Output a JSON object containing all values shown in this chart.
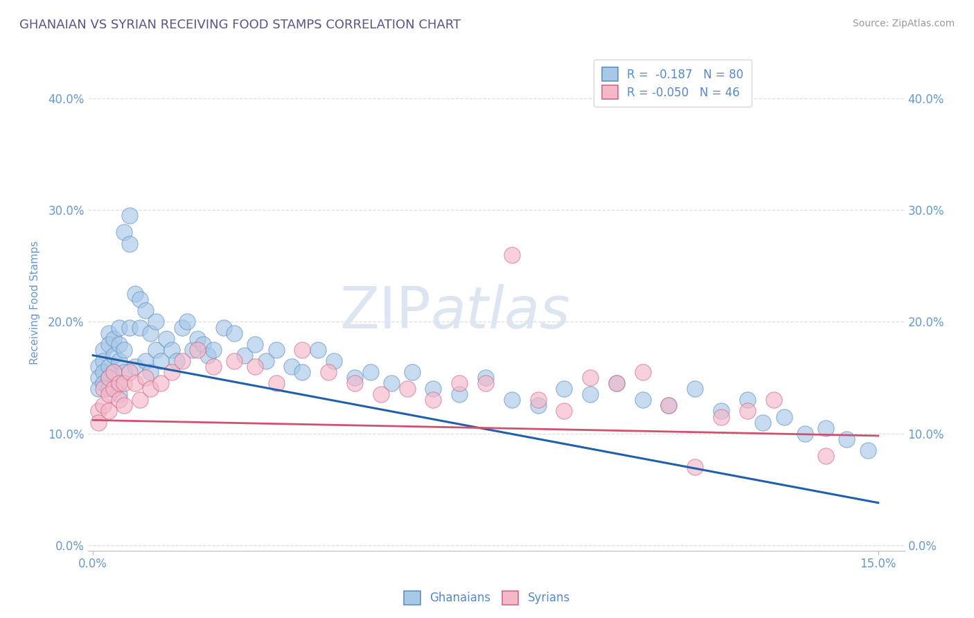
{
  "title": "GHANAIAN VS SYRIAN RECEIVING FOOD STAMPS CORRELATION CHART",
  "source": "Source: ZipAtlas.com",
  "ylabel": "Receiving Food Stamps",
  "xlim": [
    -0.001,
    0.155
  ],
  "ylim": [
    -0.005,
    0.44
  ],
  "xtick_positions": [
    0.0,
    0.15
  ],
  "xtick_labels": [
    "0.0%",
    "15.0%"
  ],
  "yticks": [
    0.0,
    0.1,
    0.2,
    0.3,
    0.4
  ],
  "ytick_labels": [
    "0.0%",
    "10.0%",
    "20.0%",
    "30.0%",
    "40.0%"
  ],
  "ghanaian_R": -0.187,
  "ghanaian_N": 80,
  "syrian_R": -0.05,
  "syrian_N": 46,
  "blue_color": "#a8c8e8",
  "pink_color": "#f4b8c8",
  "blue_edge_color": "#6090c0",
  "pink_edge_color": "#d06888",
  "blue_line_color": "#2060a8",
  "pink_line_color": "#d05070",
  "title_color": "#555588",
  "axis_label_color": "#6699cc",
  "tick_color": "#6699cc",
  "watermark_color": "#dde5f0",
  "legend_text_color": "#5588cc",
  "grid_color": "#dddddd",
  "blue_trend_x0": 0.0,
  "blue_trend_y0": 0.17,
  "blue_trend_x1": 0.15,
  "blue_trend_y1": 0.038,
  "pink_trend_x0": 0.0,
  "pink_trend_y0": 0.112,
  "pink_trend_x1": 0.15,
  "pink_trend_y1": 0.098,
  "ghanaian_x": [
    0.001,
    0.001,
    0.001,
    0.002,
    0.002,
    0.002,
    0.002,
    0.003,
    0.003,
    0.003,
    0.003,
    0.003,
    0.004,
    0.004,
    0.004,
    0.005,
    0.005,
    0.005,
    0.005,
    0.005,
    0.006,
    0.006,
    0.006,
    0.007,
    0.007,
    0.007,
    0.008,
    0.008,
    0.009,
    0.009,
    0.01,
    0.01,
    0.011,
    0.011,
    0.012,
    0.012,
    0.013,
    0.014,
    0.015,
    0.016,
    0.017,
    0.018,
    0.019,
    0.02,
    0.021,
    0.022,
    0.023,
    0.025,
    0.027,
    0.029,
    0.031,
    0.033,
    0.035,
    0.038,
    0.04,
    0.043,
    0.046,
    0.05,
    0.053,
    0.057,
    0.061,
    0.065,
    0.07,
    0.075,
    0.08,
    0.085,
    0.09,
    0.095,
    0.1,
    0.105,
    0.11,
    0.115,
    0.12,
    0.125,
    0.128,
    0.132,
    0.136,
    0.14,
    0.144,
    0.148
  ],
  "ghanaian_y": [
    0.16,
    0.15,
    0.14,
    0.175,
    0.165,
    0.155,
    0.145,
    0.19,
    0.18,
    0.16,
    0.15,
    0.14,
    0.185,
    0.17,
    0.155,
    0.195,
    0.18,
    0.165,
    0.145,
    0.135,
    0.28,
    0.175,
    0.155,
    0.295,
    0.27,
    0.195,
    0.225,
    0.16,
    0.22,
    0.195,
    0.21,
    0.165,
    0.19,
    0.155,
    0.2,
    0.175,
    0.165,
    0.185,
    0.175,
    0.165,
    0.195,
    0.2,
    0.175,
    0.185,
    0.18,
    0.17,
    0.175,
    0.195,
    0.19,
    0.17,
    0.18,
    0.165,
    0.175,
    0.16,
    0.155,
    0.175,
    0.165,
    0.15,
    0.155,
    0.145,
    0.155,
    0.14,
    0.135,
    0.15,
    0.13,
    0.125,
    0.14,
    0.135,
    0.145,
    0.13,
    0.125,
    0.14,
    0.12,
    0.13,
    0.11,
    0.115,
    0.1,
    0.105,
    0.095,
    0.085
  ],
  "syrian_x": [
    0.001,
    0.001,
    0.002,
    0.002,
    0.003,
    0.003,
    0.003,
    0.004,
    0.004,
    0.005,
    0.005,
    0.006,
    0.006,
    0.007,
    0.008,
    0.009,
    0.01,
    0.011,
    0.013,
    0.015,
    0.017,
    0.02,
    0.023,
    0.027,
    0.031,
    0.035,
    0.04,
    0.045,
    0.05,
    0.055,
    0.06,
    0.065,
    0.07,
    0.075,
    0.08,
    0.085,
    0.09,
    0.095,
    0.1,
    0.105,
    0.11,
    0.115,
    0.12,
    0.125,
    0.13,
    0.14
  ],
  "syrian_y": [
    0.12,
    0.11,
    0.14,
    0.125,
    0.15,
    0.135,
    0.12,
    0.155,
    0.14,
    0.145,
    0.13,
    0.145,
    0.125,
    0.155,
    0.145,
    0.13,
    0.15,
    0.14,
    0.145,
    0.155,
    0.165,
    0.175,
    0.16,
    0.165,
    0.16,
    0.145,
    0.175,
    0.155,
    0.145,
    0.135,
    0.14,
    0.13,
    0.145,
    0.145,
    0.26,
    0.13,
    0.12,
    0.15,
    0.145,
    0.155,
    0.125,
    0.07,
    0.115,
    0.12,
    0.13,
    0.08
  ]
}
